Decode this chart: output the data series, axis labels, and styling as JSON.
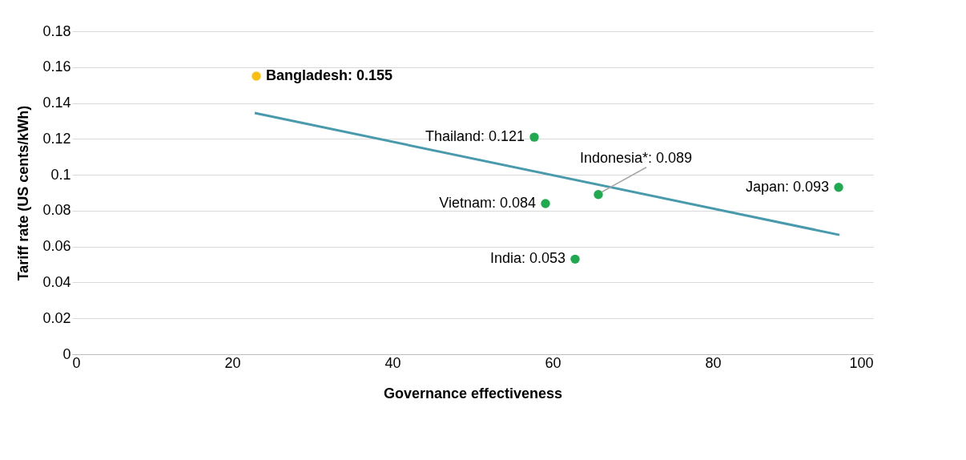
{
  "chart_data": {
    "type": "scatter",
    "xlabel": "Governance effectiveness",
    "ylabel": "Tariff rate (US cents/kWh)",
    "xlim": [
      0,
      100
    ],
    "xticks": [
      0,
      20,
      40,
      60,
      80,
      100
    ],
    "ylim": [
      0,
      0.18
    ],
    "yticks": [
      0,
      0.02,
      0.04,
      0.06,
      0.08,
      0.1,
      0.12,
      0.14,
      0.16,
      0.18
    ],
    "grid": "y",
    "series": [
      {
        "marker": "circle",
        "x": [
          23.0,
          57.7,
          59.1,
          65.7,
          62.8,
          95.7
        ],
        "values": [
          0.155,
          0.121,
          0.084,
          0.089,
          0.053,
          0.093
        ],
        "colors": [
          "#fbbf13",
          "#1faa4f",
          "#1faa4f",
          "#1faa4f",
          "#1faa4f",
          "#1faa4f"
        ]
      },
      {
        "type": "line",
        "marker": "none",
        "x": [
          22.8,
          95.8
        ],
        "values": [
          0.1344,
          0.0665
        ],
        "color": "#4a9aad"
      }
    ],
    "annotations": [
      {
        "text": "Bangladesh: 0.155",
        "x": 23.0,
        "y": 0.155
      },
      {
        "text": "Thailand: 0.121",
        "x": 57.7,
        "y": 0.121
      },
      {
        "text": "Vietnam: 0.084",
        "x": 59.1,
        "y": 0.084
      },
      {
        "text": "Indonesia*: 0.089",
        "x": 65.7,
        "y": 0.089
      },
      {
        "text": "India: 0.053",
        "x": 62.8,
        "y": 0.053
      },
      {
        "text": "Japan: 0.093",
        "x": 95.7,
        "y": 0.093
      }
    ]
  }
}
